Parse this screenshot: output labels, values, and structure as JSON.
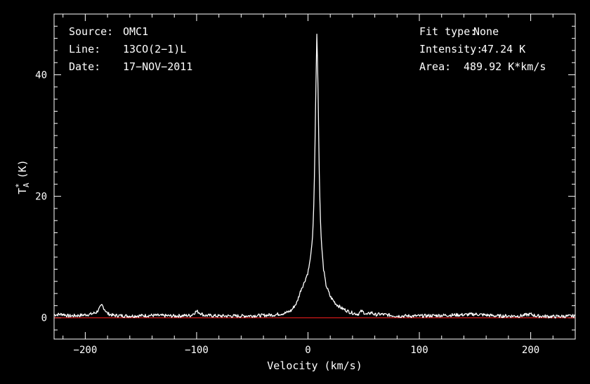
{
  "chart_data": {
    "type": "line",
    "xlabel": "Velocity (km/s)",
    "ylabel": "T*A (K)",
    "ylabel_main": "T",
    "ylabel_sup": "*",
    "ylabel_sub": "A",
    "ylabel_unit": "(K)",
    "xlim": [
      -228,
      240
    ],
    "ylim": [
      -3.5,
      50
    ],
    "xticks": [
      -200,
      -100,
      0,
      100,
      200
    ],
    "xtick_labels": [
      "−200",
      "−100",
      "0",
      "100",
      "200"
    ],
    "yticks": [
      0,
      20,
      40
    ],
    "ytick_labels": [
      "0",
      "20",
      "40"
    ],
    "grid": false,
    "colors": {
      "background": "#000000",
      "spectrum": "#ffffff",
      "baseline": "#ff2020",
      "axes": "#ffffff"
    },
    "info_left": [
      {
        "key": "Source:",
        "value": "OMC1"
      },
      {
        "key": "Line:",
        "value": "13CO(2−1)L"
      },
      {
        "key": "Date:",
        "value": "17−NOV−2011"
      }
    ],
    "info_right": [
      {
        "key": "Fit type:",
        "value": "None"
      },
      {
        "key": "Intensity:",
        "value": "47.24 K"
      },
      {
        "key": "Area:",
        "value": "489.92 K*km/s"
      }
    ],
    "series": [
      {
        "values": [
          [
            -228,
            0.5
          ],
          [
            -220,
            0.6
          ],
          [
            -215,
            0.3
          ],
          [
            -205,
            0.4
          ],
          [
            -195,
            0.6
          ],
          [
            -190,
            0.9
          ],
          [
            -187,
            1.6
          ],
          [
            -185,
            2.1
          ],
          [
            -183,
            1.5
          ],
          [
            -180,
            0.7
          ],
          [
            -175,
            0.4
          ],
          [
            -160,
            0.3
          ],
          [
            -140,
            0.4
          ],
          [
            -120,
            0.3
          ],
          [
            -105,
            0.4
          ],
          [
            -100,
            1.1
          ],
          [
            -97,
            0.8
          ],
          [
            -93,
            0.4
          ],
          [
            -80,
            0.3
          ],
          [
            -60,
            0.3
          ],
          [
            -40,
            0.4
          ],
          [
            -30,
            0.5
          ],
          [
            -20,
            0.8
          ],
          [
            -15,
            1.2
          ],
          [
            -10,
            2.5
          ],
          [
            -6,
            4.8
          ],
          [
            -4,
            5.5
          ],
          [
            -2,
            6.5
          ],
          [
            0,
            7.5
          ],
          [
            2,
            9.5
          ],
          [
            4,
            13
          ],
          [
            5,
            17
          ],
          [
            6,
            25
          ],
          [
            7,
            37
          ],
          [
            8,
            47.2
          ],
          [
            9,
            38
          ],
          [
            10,
            25
          ],
          [
            11,
            17
          ],
          [
            12,
            12.5
          ],
          [
            14,
            8
          ],
          [
            16,
            5.5
          ],
          [
            20,
            3.5
          ],
          [
            25,
            2.3
          ],
          [
            30,
            1.6
          ],
          [
            38,
            0.9
          ],
          [
            45,
            0.6
          ],
          [
            48,
            1.1
          ],
          [
            50,
            0.9
          ],
          [
            53,
            0.5
          ],
          [
            57,
            0.9
          ],
          [
            60,
            0.5
          ],
          [
            65,
            0.6
          ],
          [
            70,
            0.5
          ],
          [
            80,
            0.3
          ],
          [
            100,
            0.3
          ],
          [
            120,
            0.4
          ],
          [
            140,
            0.5
          ],
          [
            150,
            0.6
          ],
          [
            170,
            0.3
          ],
          [
            190,
            0.3
          ],
          [
            200,
            0.6
          ],
          [
            205,
            0.3
          ],
          [
            220,
            0.2
          ],
          [
            240,
            0.3
          ]
        ]
      }
    ],
    "baseline_y": 0
  }
}
